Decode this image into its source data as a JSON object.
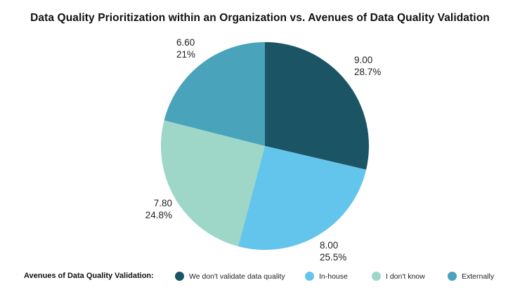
{
  "chart_data": {
    "type": "pie",
    "title": "Data Quality Prioritization within an Organization vs. Avenues of Data Quality Validation",
    "slices": [
      {
        "name": "We don't validate data quality",
        "value": 9.0,
        "value_label": "9.00",
        "percent_label": "28.7%",
        "color": "#1b5565"
      },
      {
        "name": "In-house",
        "value": 8.0,
        "value_label": "8.00",
        "percent_label": "25.5%",
        "color": "#63c4ec"
      },
      {
        "name": "I don't know",
        "value": 7.8,
        "value_label": "7.80",
        "percent_label": "24.8%",
        "color": "#9ed6c8"
      },
      {
        "name": "Externally",
        "value": 6.6,
        "value_label": "6.60",
        "percent_label": "21%",
        "color": "#48a3bb"
      }
    ],
    "start_angle": "12 o'clock",
    "direction": "clockwise",
    "legend": {
      "title": "Avenues of Data Quality Validation:",
      "placement": "bottom"
    }
  }
}
